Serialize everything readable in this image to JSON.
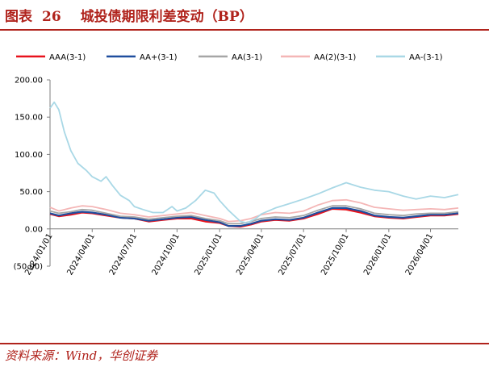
{
  "figure": {
    "label": "图表",
    "number": "26",
    "title": "城投债期限利差变动（BP）",
    "source": "资料来源：Wind，华创证券"
  },
  "colors": {
    "accent": "#b0231c"
  },
  "chart_data": {
    "type": "line",
    "title": "",
    "xlabel": "",
    "ylabel": "",
    "ylim": [
      -50,
      200
    ],
    "xlim": [
      "2024-01-01",
      "2026-05-31"
    ],
    "y_ticks": [
      {
        "value": 200,
        "label": "200.00",
        "color": "#000000"
      },
      {
        "value": 150,
        "label": "150.00",
        "color": "#000000"
      },
      {
        "value": 100,
        "label": "100.00",
        "color": "#000000"
      },
      {
        "value": 50,
        "label": "50.00",
        "color": "#000000"
      },
      {
        "value": 0,
        "label": "0.00",
        "color": "#000000"
      },
      {
        "value": -50,
        "label": "(50.00)",
        "color": "#ff0000"
      }
    ],
    "x_ticks": [
      "2024/01/01",
      "2024/04/01",
      "2024/07/01",
      "2024/10/01",
      "2025/01/01",
      "2025/04/01",
      "2025/07/01",
      "2025/10/01",
      "2026/01/01",
      "2026/04/01"
    ],
    "grid": false,
    "legend_position": "top",
    "series": [
      {
        "name": "AAA(3-1)",
        "color": "#e8121c",
        "points": [
          [
            "2024-01-01",
            20
          ],
          [
            "2024-01-20",
            17
          ],
          [
            "2024-02-15",
            19
          ],
          [
            "2024-03-10",
            22
          ],
          [
            "2024-04-01",
            21
          ],
          [
            "2024-05-01",
            18
          ],
          [
            "2024-06-01",
            15
          ],
          [
            "2024-07-01",
            14
          ],
          [
            "2024-08-01",
            10
          ],
          [
            "2024-09-01",
            12
          ],
          [
            "2024-10-01",
            14
          ],
          [
            "2024-11-01",
            14
          ],
          [
            "2024-12-01",
            10
          ],
          [
            "2025-01-01",
            8
          ],
          [
            "2025-01-20",
            4
          ],
          [
            "2025-02-15",
            3
          ],
          [
            "2025-03-10",
            6
          ],
          [
            "2025-04-01",
            10
          ],
          [
            "2025-05-01",
            12
          ],
          [
            "2025-06-01",
            11
          ],
          [
            "2025-07-01",
            14
          ],
          [
            "2025-08-01",
            20
          ],
          [
            "2025-09-01",
            27
          ],
          [
            "2025-10-01",
            26
          ],
          [
            "2025-11-01",
            22
          ],
          [
            "2025-12-01",
            17
          ],
          [
            "2026-01-01",
            15
          ],
          [
            "2026-02-01",
            14
          ],
          [
            "2026-03-01",
            16
          ],
          [
            "2026-04-01",
            18
          ],
          [
            "2026-05-01",
            18
          ],
          [
            "2026-05-31",
            20
          ]
        ]
      },
      {
        "name": "AA+(3-1)",
        "color": "#1f4e9e",
        "points": [
          [
            "2024-01-01",
            21
          ],
          [
            "2024-01-20",
            18
          ],
          [
            "2024-02-15",
            21
          ],
          [
            "2024-03-10",
            23
          ],
          [
            "2024-04-01",
            22
          ],
          [
            "2024-05-01",
            19
          ],
          [
            "2024-06-01",
            15
          ],
          [
            "2024-07-01",
            14
          ],
          [
            "2024-08-01",
            11
          ],
          [
            "2024-09-01",
            13
          ],
          [
            "2024-10-01",
            15
          ],
          [
            "2024-11-01",
            16
          ],
          [
            "2024-12-01",
            12
          ],
          [
            "2025-01-01",
            9
          ],
          [
            "2025-01-20",
            4
          ],
          [
            "2025-02-15",
            4
          ],
          [
            "2025-03-10",
            7
          ],
          [
            "2025-04-01",
            11
          ],
          [
            "2025-05-01",
            13
          ],
          [
            "2025-06-01",
            12
          ],
          [
            "2025-07-01",
            15
          ],
          [
            "2025-08-01",
            22
          ],
          [
            "2025-09-01",
            28
          ],
          [
            "2025-10-01",
            28
          ],
          [
            "2025-11-01",
            24
          ],
          [
            "2025-12-01",
            18
          ],
          [
            "2026-01-01",
            16
          ],
          [
            "2026-02-01",
            15
          ],
          [
            "2026-03-01",
            17
          ],
          [
            "2026-04-01",
            19
          ],
          [
            "2026-05-01",
            19
          ],
          [
            "2026-05-31",
            21
          ]
        ]
      },
      {
        "name": "AA(3-1)",
        "color": "#a6a6a6",
        "points": [
          [
            "2024-01-01",
            24
          ],
          [
            "2024-01-20",
            21
          ],
          [
            "2024-02-15",
            23
          ],
          [
            "2024-03-10",
            26
          ],
          [
            "2024-04-01",
            25
          ],
          [
            "2024-05-01",
            21
          ],
          [
            "2024-06-01",
            17
          ],
          [
            "2024-07-01",
            16
          ],
          [
            "2024-08-01",
            13
          ],
          [
            "2024-09-01",
            15
          ],
          [
            "2024-10-01",
            17
          ],
          [
            "2024-11-01",
            18
          ],
          [
            "2024-12-01",
            14
          ],
          [
            "2025-01-01",
            11
          ],
          [
            "2025-01-20",
            7
          ],
          [
            "2025-02-15",
            7
          ],
          [
            "2025-03-10",
            10
          ],
          [
            "2025-04-01",
            14
          ],
          [
            "2025-05-01",
            16
          ],
          [
            "2025-06-01",
            15
          ],
          [
            "2025-07-01",
            18
          ],
          [
            "2025-08-01",
            25
          ],
          [
            "2025-09-01",
            31
          ],
          [
            "2025-10-01",
            31
          ],
          [
            "2025-11-01",
            27
          ],
          [
            "2025-12-01",
            21
          ],
          [
            "2026-01-01",
            19
          ],
          [
            "2026-02-01",
            18
          ],
          [
            "2026-03-01",
            20
          ],
          [
            "2026-04-01",
            21
          ],
          [
            "2026-05-01",
            21
          ],
          [
            "2026-05-31",
            23
          ]
        ]
      },
      {
        "name": "AA(2)(3-1)",
        "color": "#f4b6b6",
        "points": [
          [
            "2024-01-01",
            29
          ],
          [
            "2024-01-20",
            24
          ],
          [
            "2024-02-15",
            28
          ],
          [
            "2024-03-10",
            31
          ],
          [
            "2024-04-01",
            30
          ],
          [
            "2024-05-01",
            26
          ],
          [
            "2024-06-01",
            21
          ],
          [
            "2024-07-01",
            19
          ],
          [
            "2024-08-01",
            16
          ],
          [
            "2024-09-01",
            18
          ],
          [
            "2024-10-01",
            20
          ],
          [
            "2024-11-01",
            22
          ],
          [
            "2024-12-01",
            18
          ],
          [
            "2025-01-01",
            14
          ],
          [
            "2025-01-20",
            10
          ],
          [
            "2025-02-15",
            11
          ],
          [
            "2025-03-10",
            14
          ],
          [
            "2025-04-01",
            19
          ],
          [
            "2025-05-01",
            22
          ],
          [
            "2025-06-01",
            21
          ],
          [
            "2025-07-01",
            24
          ],
          [
            "2025-08-01",
            32
          ],
          [
            "2025-09-01",
            38
          ],
          [
            "2025-10-01",
            39
          ],
          [
            "2025-11-01",
            35
          ],
          [
            "2025-12-01",
            29
          ],
          [
            "2026-01-01",
            27
          ],
          [
            "2026-02-01",
            25
          ],
          [
            "2026-03-01",
            26
          ],
          [
            "2026-04-01",
            27
          ],
          [
            "2026-05-01",
            26
          ],
          [
            "2026-05-31",
            28
          ]
        ]
      },
      {
        "name": "AA-(3-1)",
        "color": "#a9d8e6",
        "points": [
          [
            "2024-01-01",
            162
          ],
          [
            "2024-01-10",
            170
          ],
          [
            "2024-01-20",
            160
          ],
          [
            "2024-02-01",
            130
          ],
          [
            "2024-02-15",
            105
          ],
          [
            "2024-03-01",
            88
          ],
          [
            "2024-03-20",
            78
          ],
          [
            "2024-04-01",
            70
          ],
          [
            "2024-04-20",
            64
          ],
          [
            "2024-05-01",
            70
          ],
          [
            "2024-05-15",
            58
          ],
          [
            "2024-06-01",
            45
          ],
          [
            "2024-06-20",
            38
          ],
          [
            "2024-07-01",
            30
          ],
          [
            "2024-07-20",
            26
          ],
          [
            "2024-08-10",
            22
          ],
          [
            "2024-09-01",
            22
          ],
          [
            "2024-09-20",
            30
          ],
          [
            "2024-10-01",
            24
          ],
          [
            "2024-10-20",
            28
          ],
          [
            "2024-11-10",
            38
          ],
          [
            "2024-12-01",
            52
          ],
          [
            "2024-12-20",
            48
          ],
          [
            "2025-01-01",
            38
          ],
          [
            "2025-01-20",
            25
          ],
          [
            "2025-02-15",
            10
          ],
          [
            "2025-03-01",
            8
          ],
          [
            "2025-03-20",
            14
          ],
          [
            "2025-04-01",
            20
          ],
          [
            "2025-05-01",
            28
          ],
          [
            "2025-06-01",
            34
          ],
          [
            "2025-07-01",
            40
          ],
          [
            "2025-08-01",
            47
          ],
          [
            "2025-09-01",
            55
          ],
          [
            "2025-10-01",
            62
          ],
          [
            "2025-11-01",
            56
          ],
          [
            "2025-12-01",
            52
          ],
          [
            "2026-01-01",
            50
          ],
          [
            "2026-02-01",
            44
          ],
          [
            "2026-03-01",
            40
          ],
          [
            "2026-04-01",
            44
          ],
          [
            "2026-05-01",
            42
          ],
          [
            "2026-05-31",
            46
          ]
        ]
      }
    ]
  }
}
